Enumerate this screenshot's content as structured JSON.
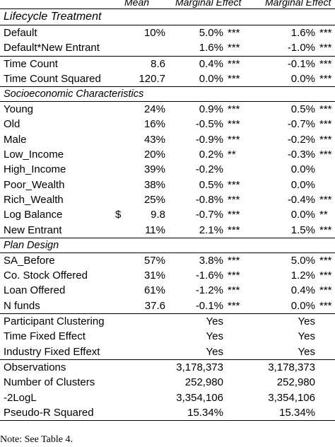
{
  "header": {
    "mean": "Mean",
    "me1": "Marginal Effect",
    "me2": "Marginal Effect"
  },
  "sections": {
    "lifecycle": "Lifecycle Treatment",
    "socio": "Socioeconomic Characteristics",
    "plan": "Plan Design"
  },
  "rows": {
    "default": {
      "label": "Default",
      "mean": "10%",
      "me1": "5.0%",
      "s1": "***",
      "me2": "1.6%",
      "s2": "***"
    },
    "default_ne": {
      "label": "Default*New Entrant",
      "mean": "",
      "me1": "1.6%",
      "s1": "***",
      "me2": "-1.0%",
      "s2": "***"
    },
    "time_count": {
      "label": "Time Count",
      "mean": "8.6",
      "me1": "0.4%",
      "s1": "***",
      "me2": "-0.1%",
      "s2": "***"
    },
    "time_count_sq": {
      "label": "Time Count Squared",
      "mean": "120.7",
      "me1": "0.0%",
      "s1": "***",
      "me2": "0.0%",
      "s2": "***"
    },
    "young": {
      "label": "Young",
      "mean": "24%",
      "me1": "0.9%",
      "s1": "***",
      "me2": "0.5%",
      "s2": "***"
    },
    "old": {
      "label": "Old",
      "mean": "16%",
      "me1": "-0.5%",
      "s1": "***",
      "me2": "-0.7%",
      "s2": "***"
    },
    "male": {
      "label": "Male",
      "mean": "43%",
      "me1": "-0.9%",
      "s1": "***",
      "me2": "-0.2%",
      "s2": "***"
    },
    "low_income": {
      "label": "Low_Income",
      "mean": "20%",
      "me1": "0.2%",
      "s1": "**",
      "me2": "-0.3%",
      "s2": "***"
    },
    "high_income": {
      "label": "High_Income",
      "mean": "39%",
      "me1": "-0.2%",
      "s1": "",
      "me2": "0.0%",
      "s2": ""
    },
    "poor_wealth": {
      "label": "Poor_Wealth",
      "mean": "38%",
      "me1": "0.5%",
      "s1": "***",
      "me2": "0.0%",
      "s2": ""
    },
    "rich_wealth": {
      "label": "Rich_Wealth",
      "mean": "25%",
      "me1": "-0.8%",
      "s1": "***",
      "me2": "-0.4%",
      "s2": "***"
    },
    "log_balance": {
      "label": "Log Balance",
      "dollar": "$",
      "mean": "9.8",
      "me1": "-0.7%",
      "s1": "***",
      "me2": "0.0%",
      "s2": "**"
    },
    "new_entrant": {
      "label": "New Entrant",
      "mean": "11%",
      "me1": "2.1%",
      "s1": "***",
      "me2": "1.5%",
      "s2": "***"
    },
    "sa_before": {
      "label": "SA_Before",
      "mean": "57%",
      "me1": "3.8%",
      "s1": "***",
      "me2": "5.0%",
      "s2": "***"
    },
    "co_stock": {
      "label": "Co. Stock Offered",
      "mean": "31%",
      "me1": "-1.6%",
      "s1": "***",
      "me2": "1.2%",
      "s2": "***"
    },
    "loan": {
      "label": "Loan Offered",
      "mean": "61%",
      "me1": "-1.2%",
      "s1": "***",
      "me2": "0.4%",
      "s2": "***"
    },
    "n_funds": {
      "label": "N funds",
      "mean": "37.6",
      "me1": "-0.1%",
      "s1": "***",
      "me2": "0.0%",
      "s2": "***"
    },
    "clustering": {
      "label": "Participant Clustering",
      "me1": "Yes",
      "me2": "Yes"
    },
    "time_fe": {
      "label": "Time Fixed Effect",
      "me1": "Yes",
      "me2": "Yes"
    },
    "industry_fe": {
      "label": "Industry Fixed Effext",
      "me1": "Yes",
      "me2": "Yes"
    },
    "observations": {
      "label": "Observations",
      "me1": "3,178,373",
      "me2": "3,178,373"
    },
    "clusters": {
      "label": "Number of Clusters",
      "me1": "252,980",
      "me2": "252,980"
    },
    "loglik": {
      "label": "-2LogL",
      "me1": "3,354,106",
      "me2": "3,354,106"
    },
    "pseudo_r2": {
      "label": "Pseudo-R Squared",
      "me1": "15.34%",
      "me2": "15.34%"
    }
  },
  "note": "Note: See Table 4."
}
